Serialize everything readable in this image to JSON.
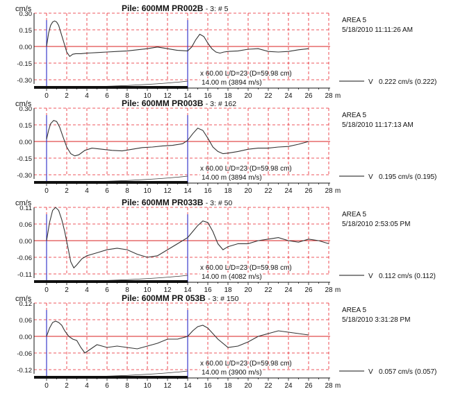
{
  "colors": {
    "grid": "#e8202a",
    "zero_line": "#d81f1f",
    "trace": "#333333",
    "marker": "#3a3acc",
    "axis": "#111111"
  },
  "chart_data": [
    {
      "type": "line",
      "unit_label": "cm/s",
      "title_prefix": "Pile:",
      "title_main": "600MM PR002B",
      "title_suffix": "- 3: # 5",
      "area": "AREA 5",
      "timestamp": "5/18/2010 11:11:26 AM",
      "y_ticks": [
        "0.30",
        "0.15",
        "0.00",
        "-0.15",
        "-0.30"
      ],
      "ylim": [
        -0.3,
        0.3
      ],
      "x_ticks": [
        "0",
        "2",
        "4",
        "6",
        "8",
        "10",
        "12",
        "14",
        "16",
        "18",
        "20",
        "22",
        "24",
        "26",
        "28"
      ],
      "x_unit": "m",
      "xlim": [
        0,
        29
      ],
      "markers": [
        0,
        14
      ],
      "amp_text": "x 60.00  L/D=23 (D=59.98 cm)",
      "length_text": "14.00 m (3894 m/s)",
      "v_label": "V",
      "v_text": "0.222 cm/s  (0.222)",
      "x": [
        0,
        0.2,
        0.4,
        0.6,
        0.8,
        1.0,
        1.2,
        1.4,
        1.7,
        2.0,
        2.3,
        2.6,
        2.9,
        3.4,
        4.0,
        5.0,
        6.0,
        7.0,
        8.0,
        9.0,
        10.0,
        11.0,
        12.0,
        13.0,
        14.0,
        14.4,
        14.8,
        15.2,
        15.6,
        16.0,
        16.4,
        16.8,
        17.2,
        17.6,
        18.0,
        19.0,
        20.0,
        21.0,
        22.0,
        23.0,
        24.0,
        25.0,
        26.0
      ],
      "y": [
        0.0,
        0.12,
        0.19,
        0.22,
        0.23,
        0.22,
        0.19,
        0.13,
        0.04,
        -0.05,
        -0.09,
        -0.07,
        -0.065,
        -0.065,
        -0.06,
        -0.055,
        -0.05,
        -0.045,
        -0.04,
        -0.03,
        -0.02,
        -0.005,
        -0.02,
        -0.035,
        -0.04,
        -0.005,
        0.06,
        0.11,
        0.09,
        0.03,
        -0.02,
        -0.05,
        -0.06,
        -0.05,
        -0.045,
        -0.04,
        -0.025,
        -0.02,
        -0.045,
        -0.05,
        -0.045,
        -0.03,
        -0.02
      ]
    },
    {
      "type": "line",
      "unit_label": "cm/s",
      "title_prefix": "Pile:",
      "title_main": "600MM PR003B",
      "title_suffix": "- 3: # 162",
      "area": "AREA 5",
      "timestamp": "5/18/2010 11:17:13 AM",
      "y_ticks": [
        "0.30",
        "0.15",
        "0.00",
        "-0.15",
        "-0.30"
      ],
      "ylim": [
        -0.3,
        0.3
      ],
      "x_ticks": [
        "0",
        "2",
        "4",
        "6",
        "8",
        "10",
        "12",
        "14",
        "16",
        "18",
        "20",
        "22",
        "24",
        "26",
        "28"
      ],
      "x_unit": "m",
      "xlim": [
        0,
        29
      ],
      "markers": [
        0,
        14
      ],
      "amp_text": "x 60.00  L/D=23 (D=59.98 cm)",
      "length_text": "14.00 m (3894 m/s)",
      "v_label": "V",
      "v_text": "0.195 cm/s  (0.195)",
      "x": [
        0,
        0.2,
        0.4,
        0.7,
        1.0,
        1.3,
        1.6,
        2.0,
        2.4,
        2.8,
        3.2,
        3.8,
        4.5,
        5.5,
        6.5,
        7.5,
        8.5,
        9.5,
        10.5,
        11.5,
        12.5,
        13.5,
        14.0,
        14.5,
        15.0,
        15.5,
        16.0,
        16.5,
        17.0,
        17.5,
        18.0,
        19.0,
        20.0,
        21.0,
        22.0,
        23.0,
        24.0,
        25.0,
        26.0
      ],
      "y": [
        0.02,
        0.1,
        0.16,
        0.19,
        0.18,
        0.13,
        0.05,
        -0.05,
        -0.11,
        -0.13,
        -0.12,
        -0.08,
        -0.06,
        -0.07,
        -0.08,
        -0.085,
        -0.07,
        -0.055,
        -0.05,
        -0.04,
        -0.035,
        -0.02,
        0.01,
        0.07,
        0.12,
        0.1,
        0.03,
        -0.05,
        -0.09,
        -0.11,
        -0.105,
        -0.09,
        -0.07,
        -0.06,
        -0.06,
        -0.05,
        -0.045,
        -0.025,
        0.0
      ]
    },
    {
      "type": "line",
      "unit_label": "cm/s",
      "title_prefix": "Pile:",
      "title_main": "600MM PR033B",
      "title_suffix": "- 3: # 50",
      "area": "AREA 5",
      "timestamp": "5/18/2010 2:53:05 PM",
      "y_ticks": [
        "0.11",
        "0.06",
        "0.00",
        "-0.06",
        "-0.11"
      ],
      "ylim": [
        -0.11,
        0.11
      ],
      "x_ticks": [
        "0",
        "2",
        "4",
        "6",
        "8",
        "10",
        "12",
        "14",
        "16",
        "18",
        "20",
        "22",
        "24",
        "26",
        "28"
      ],
      "x_unit": "m",
      "xlim": [
        0,
        29
      ],
      "markers": [
        0,
        14
      ],
      "amp_text": "x 60.00  L/D=23 (D=59.98 cm)",
      "length_text": "14.00 m (4082 m/s)",
      "v_label": "V",
      "v_text": "0.112 cm/s  (0.112)",
      "x": [
        0,
        0.3,
        0.6,
        0.9,
        1.2,
        1.5,
        1.8,
        2.1,
        2.4,
        2.7,
        3.0,
        3.5,
        4.0,
        5.0,
        6.0,
        7.0,
        8.0,
        9.0,
        10.0,
        11.0,
        12.0,
        13.0,
        14.0,
        14.5,
        15.0,
        15.5,
        16.0,
        16.5,
        17.0,
        17.5,
        18.0,
        19.0,
        20.0,
        21.0,
        22.0,
        23.0,
        24.0,
        25.0,
        26.0,
        27.0,
        28.0
      ],
      "y": [
        0.0,
        0.06,
        0.1,
        0.11,
        0.1,
        0.07,
        0.03,
        -0.02,
        -0.07,
        -0.09,
        -0.08,
        -0.06,
        -0.05,
        -0.04,
        -0.03,
        -0.025,
        -0.03,
        -0.045,
        -0.055,
        -0.05,
        -0.03,
        -0.01,
        0.01,
        0.03,
        0.05,
        0.065,
        0.06,
        0.03,
        -0.01,
        -0.03,
        -0.02,
        -0.01,
        -0.01,
        0.0,
        0.005,
        0.01,
        0.0,
        -0.005,
        0.005,
        0.0,
        -0.01
      ]
    },
    {
      "type": "line",
      "unit_label": "cm/s",
      "title_prefix": "Pile:",
      "title_main": "600MM PR 053B",
      "title_suffix": "- 3: # 150",
      "area": "AREA 5",
      "timestamp": "5/18/2010 3:31:28 PM",
      "y_ticks": [
        "0.12",
        "0.06",
        "0.00",
        "-0.06",
        "-0.12"
      ],
      "ylim": [
        -0.12,
        0.12
      ],
      "x_ticks": [
        "0",
        "2",
        "4",
        "6",
        "8",
        "10",
        "12",
        "14",
        "16",
        "18",
        "20",
        "22",
        "24",
        "26",
        "28"
      ],
      "x_unit": "m",
      "xlim": [
        0,
        29
      ],
      "markers": [
        0,
        14
      ],
      "amp_text": "x 60.00  L/D=23 (D=59.98 cm)",
      "length_text": "14.00 m (3900 m/s)",
      "v_label": "V",
      "v_text": "0.057 cm/s  (0.057)",
      "x": [
        0,
        0.3,
        0.6,
        0.9,
        1.2,
        1.5,
        1.8,
        2.2,
        2.6,
        3.0,
        3.4,
        3.8,
        4.2,
        5.0,
        6.0,
        7.0,
        8.0,
        9.0,
        10.0,
        11.0,
        12.0,
        13.0,
        14.0,
        14.5,
        15.0,
        15.5,
        16.0,
        17.0,
        18.0,
        19.0,
        20.0,
        21.0,
        22.0,
        23.0,
        24.0,
        25.0,
        26.0
      ],
      "y": [
        0.0,
        0.03,
        0.05,
        0.055,
        0.05,
        0.04,
        0.02,
        0.0,
        -0.01,
        -0.015,
        -0.04,
        -0.06,
        -0.05,
        -0.03,
        -0.04,
        -0.035,
        -0.04,
        -0.045,
        -0.035,
        -0.025,
        -0.01,
        -0.01,
        0.0,
        0.02,
        0.035,
        0.04,
        0.03,
        -0.01,
        -0.04,
        -0.035,
        -0.02,
        0.0,
        0.01,
        0.02,
        0.015,
        0.01,
        0.005
      ]
    }
  ]
}
